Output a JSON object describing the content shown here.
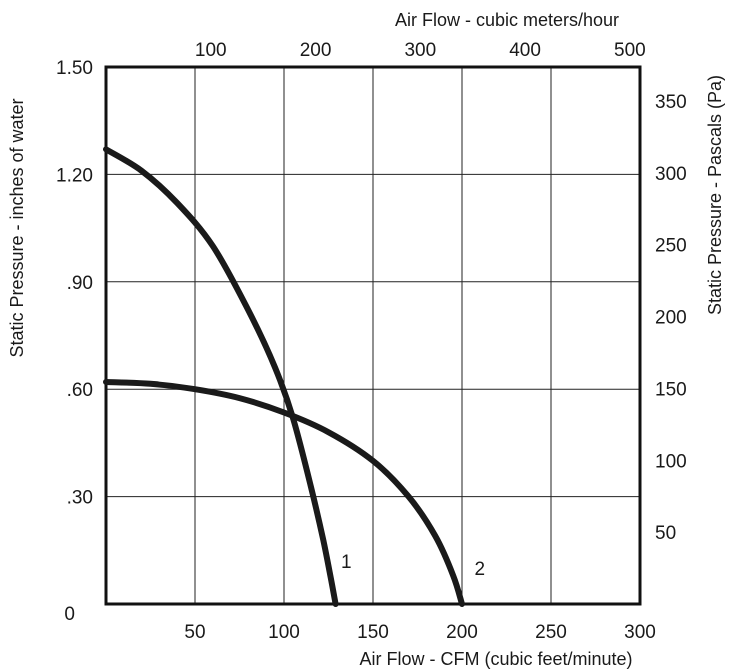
{
  "chart_data": {
    "type": "line",
    "title": "",
    "xlabel": "Air Flow - CFM (cubic feet/minute)",
    "ylabel": "Static Pressure - inches of water",
    "x2label": "Air Flow - cubic meters/hour",
    "y2label": "Static Pressure - Pascals (Pa)",
    "xlim": [
      0,
      300
    ],
    "ylim": [
      0,
      1.5
    ],
    "x_ticks": [
      {
        "value": 0,
        "label": ""
      },
      {
        "value": 50,
        "label": "50"
      },
      {
        "value": 100,
        "label": "100"
      },
      {
        "value": 150,
        "label": "150"
      },
      {
        "value": 200,
        "label": "200"
      },
      {
        "value": 250,
        "label": "250"
      },
      {
        "value": 300,
        "label": "300"
      }
    ],
    "y_ticks": [
      {
        "value": 0,
        "label": "0"
      },
      {
        "value": 0.3,
        "label": ".30"
      },
      {
        "value": 0.6,
        "label": ".60"
      },
      {
        "value": 0.9,
        "label": ".90"
      },
      {
        "value": 1.2,
        "label": "1.20"
      },
      {
        "value": 1.5,
        "label": "1.50"
      }
    ],
    "x2_ticks": [
      {
        "value": 100,
        "label": "100"
      },
      {
        "value": 200,
        "label": "200"
      },
      {
        "value": 300,
        "label": "300"
      },
      {
        "value": 400,
        "label": "400"
      },
      {
        "value": 500,
        "label": "500"
      }
    ],
    "y2_ticks": [
      {
        "value": 50,
        "label": "50"
      },
      {
        "value": 100,
        "label": "100"
      },
      {
        "value": 150,
        "label": "150"
      },
      {
        "value": 200,
        "label": "200"
      },
      {
        "value": 250,
        "label": "250"
      },
      {
        "value": 300,
        "label": "300"
      },
      {
        "value": 350,
        "label": "350"
      }
    ],
    "grid": true,
    "series": [
      {
        "label": "1",
        "x": [
          0,
          20,
          40,
          60,
          80,
          95,
          105,
          115,
          122,
          126,
          129
        ],
        "y": [
          1.27,
          1.21,
          1.12,
          1.0,
          0.82,
          0.66,
          0.52,
          0.33,
          0.18,
          0.08,
          0.0
        ],
        "label_at": [
          135,
          0.12
        ]
      },
      {
        "label": "2",
        "x": [
          0,
          25,
          50,
          75,
          100,
          125,
          150,
          170,
          185,
          195,
          200
        ],
        "y": [
          0.62,
          0.615,
          0.6,
          0.575,
          0.535,
          0.48,
          0.4,
          0.3,
          0.19,
          0.08,
          0.0
        ],
        "label_at": [
          210,
          0.1
        ]
      }
    ]
  }
}
